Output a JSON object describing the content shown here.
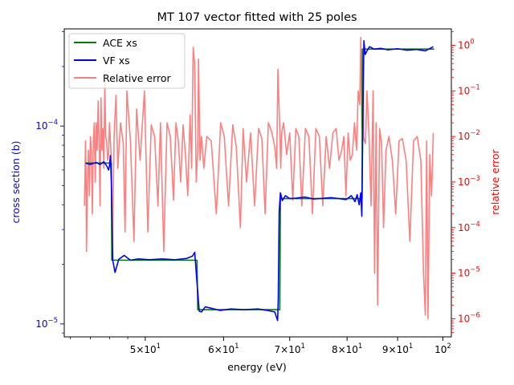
{
  "chart_data": {
    "type": "line",
    "title": "MT 107 vector fitted with 25 poles",
    "xlabel": "energy (eV)",
    "ylabel_left": "cross section (b)",
    "ylabel_right": "relative error",
    "x_scale": "log",
    "y_left_scale": "log",
    "y_right_scale": "log",
    "xlim": [
      41.4,
      102
    ],
    "ylim_left": [
      8.6e-06,
      0.00031
    ],
    "ylim_right": [
      4e-07,
      2.3
    ],
    "grid": false,
    "legend_position": "top-left",
    "x_ticks": [
      {
        "value": 50,
        "base": "5×10",
        "exp": "1"
      },
      {
        "value": 60,
        "base": "6×10",
        "exp": "1"
      },
      {
        "value": 70,
        "base": "7×10",
        "exp": "1"
      },
      {
        "value": 80,
        "base": "8×10",
        "exp": "1"
      },
      {
        "value": 90,
        "base": "9×10",
        "exp": "1"
      },
      {
        "value": 100,
        "base": "10",
        "exp": "2"
      }
    ],
    "y_left_ticks": [
      {
        "value": 1e-05,
        "base": "10",
        "exp": "−5"
      },
      {
        "value": 0.0001,
        "base": "10",
        "exp": "−4"
      }
    ],
    "y_right_ticks": [
      {
        "value": 1e-06,
        "base": "10",
        "exp": "−6"
      },
      {
        "value": 1e-05,
        "base": "10",
        "exp": "−5"
      },
      {
        "value": 0.0001,
        "base": "10",
        "exp": "−4"
      },
      {
        "value": 0.001,
        "base": "10",
        "exp": "−3"
      },
      {
        "value": 0.01,
        "base": "10",
        "exp": "−2"
      },
      {
        "value": 0.1,
        "base": "10",
        "exp": "−1"
      },
      {
        "value": 1,
        "base": "10",
        "exp": "0"
      }
    ],
    "colors": {
      "ace": "#008000",
      "vf": "#0000ff",
      "error": "#ff7f7f",
      "left_axis": "#0000ff",
      "right_axis": "#ff0000"
    },
    "series": [
      {
        "name": "ACE xs",
        "axis": "left",
        "x": [
          43.5,
          45.2,
          46.2,
          46.25,
          50,
          55.5,
          56.4,
          56.5,
          62,
          68.2,
          68.4,
          68.5,
          75,
          82.5,
          82.85,
          82.9,
          98
        ],
        "y": [
          6.5e-05,
          6.5e-05,
          6.5e-05,
          2.1e-05,
          2.1e-05,
          2.1e-05,
          2.1e-05,
          1.18e-05,
          1.18e-05,
          1.18e-05,
          1.18e-05,
          4.3e-05,
          4.3e-05,
          4.3e-05,
          4.3e-05,
          0.000245,
          0.000245
        ]
      },
      {
        "name": "VF xs",
        "axis": "left",
        "x": [
          43.5,
          44.0,
          44.6,
          45.0,
          45.4,
          45.7,
          45.9,
          46.0,
          46.1,
          46.2,
          46.35,
          46.6,
          47.0,
          47.6,
          48.3,
          49.2,
          50.5,
          52.0,
          53.5,
          55.0,
          55.8,
          56.1,
          56.4,
          56.7,
          57.0,
          57.5,
          58.3,
          59.5,
          61.0,
          63.0,
          65.0,
          66.5,
          67.6,
          68.05,
          68.15,
          68.3,
          68.5,
          68.8,
          69.3,
          70.0,
          71.0,
          72.5,
          74.0,
          75.5,
          77.0,
          78.5,
          79.8,
          80.8,
          81.5,
          81.9,
          82.3,
          82.6,
          82.8,
          83.0,
          83.2,
          83.45,
          83.8,
          84.3,
          85.2,
          86.5,
          88.0,
          90.0,
          92.0,
          94.0,
          96.0,
          97.8
        ],
        "y": [
          6.5e-05,
          6.4e-05,
          6.55e-05,
          6.4e-05,
          6.6e-05,
          6.3e-05,
          6e-05,
          6.3e-05,
          7.1e-05,
          5.2e-05,
          2.1e-05,
          1.82e-05,
          2.12e-05,
          2.22e-05,
          2.1e-05,
          2.13e-05,
          2.11e-05,
          2.13e-05,
          2.11e-05,
          2.14e-05,
          2.2e-05,
          2.3e-05,
          1.62e-05,
          1.16e-05,
          1.15e-05,
          1.22e-05,
          1.2e-05,
          1.17e-05,
          1.19e-05,
          1.18e-05,
          1.19e-05,
          1.17e-05,
          1.15e-05,
          1.04e-05,
          1.3e-05,
          3.7e-05,
          4.6e-05,
          4.2e-05,
          4.45e-05,
          4.3e-05,
          4.32e-05,
          4.38e-05,
          4.28e-05,
          4.31e-05,
          4.35e-05,
          4.3e-05,
          4.25e-05,
          4.45e-05,
          4.15e-05,
          4.5e-05,
          4e-05,
          4.6e-05,
          3.5e-05,
          0.000105,
          0.00027,
          0.00023,
          0.00024,
          0.000252,
          0.000245,
          0.000247,
          0.000243,
          0.000246,
          0.000242,
          0.000244,
          0.00024,
          0.000252
        ]
      },
      {
        "name": "Relative error",
        "axis": "right",
        "x": [
          43.4,
          43.5,
          43.55,
          43.6,
          43.7,
          43.8,
          43.9,
          44.0,
          44.1,
          44.2,
          44.3,
          44.4,
          44.5,
          44.6,
          44.7,
          44.8,
          44.9,
          45.0,
          45.1,
          45.2,
          45.3,
          45.4,
          45.5,
          45.6,
          45.7,
          45.8,
          45.9,
          46.0,
          46.1,
          46.2,
          46.3,
          46.5,
          46.7,
          46.9,
          47.2,
          47.5,
          47.7,
          47.9,
          48.3,
          48.7,
          49.0,
          49.4,
          49.9,
          50.3,
          50.7,
          51.1,
          51.5,
          51.8,
          52.2,
          52.6,
          53.0,
          53.4,
          53.7,
          54.0,
          54.3,
          54.6,
          54.9,
          55.2,
          55.5,
          55.7,
          55.9,
          56.1,
          56.3,
          56.5,
          56.6,
          56.8,
          57.0,
          57.3,
          57.7,
          58.3,
          59.0,
          59.6,
          60.1,
          60.7,
          61.3,
          61.8,
          62.4,
          62.8,
          63.3,
          63.9,
          64.5,
          65.1,
          65.6,
          66.1,
          66.6,
          67.1,
          67.6,
          67.9,
          68.1,
          68.25,
          68.4,
          68.55,
          68.7,
          69.0,
          69.5,
          70.0,
          70.5,
          71.0,
          71.5,
          72.0,
          72.6,
          73.2,
          73.8,
          74.4,
          75.0,
          75.6,
          76.2,
          76.8,
          77.4,
          78.0,
          78.5,
          79.0,
          79.4,
          79.8,
          80.2,
          80.6,
          81.0,
          81.4,
          81.8,
          82.1,
          82.4,
          82.6,
          82.8,
          83.0,
          83.15,
          83.3,
          83.5,
          83.8,
          84.2,
          84.6,
          85.0,
          85.3,
          85.6,
          85.9,
          86.3,
          86.7,
          87.1,
          87.6,
          88.2,
          88.9,
          89.6,
          90.3,
          91.0,
          91.8,
          92.6,
          93.4,
          94.2,
          95.0,
          95.6,
          96.0,
          96.3,
          96.6,
          97.0,
          97.4,
          97.8
        ],
        "y": [
          0.0003,
          0.008,
          0.002,
          3e-05,
          0.001,
          0.005,
          0.0005,
          0.01,
          0.005,
          0.0002,
          0.008,
          0.02,
          0.001,
          0.02,
          0.005,
          0.06,
          0.008,
          0.0003,
          0.07,
          0.005,
          0.015,
          0.002,
          0.15,
          0.01,
          0.008,
          0.003,
          0.004,
          0.02,
          0.008,
          0.003,
          2e-05,
          0.01,
          0.08,
          0.002,
          0.02,
          0.007,
          8e-05,
          0.1,
          0.008,
          5e-05,
          0.04,
          0.003,
          0.1,
          8e-05,
          0.018,
          0.01,
          0.0003,
          0.02,
          3e-05,
          0.02,
          0.01,
          0.0004,
          0.02,
          0.008,
          0.001,
          0.018,
          0.004,
          0.0005,
          0.03,
          0.002,
          0.9,
          0.4,
          0.001,
          0.005,
          0.5,
          0.003,
          0.01,
          0.002,
          0.01,
          0.008,
          0.0002,
          0.02,
          0.01,
          0.0003,
          0.018,
          0.006,
          0.0001,
          0.015,
          0.001,
          0.012,
          0.0003,
          0.015,
          0.009,
          0.0002,
          0.02,
          0.013,
          0.006,
          0.002,
          0.3,
          0.06,
          0.015,
          0.002,
          0.012,
          0.02,
          0.004,
          0.012,
          0.0004,
          0.015,
          0.01,
          0.0003,
          0.015,
          0.01,
          0.0002,
          0.015,
          0.01,
          0.0003,
          0.01,
          0.002,
          0.012,
          0.015,
          0.003,
          0.005,
          0.01,
          0.0005,
          0.012,
          0.003,
          0.004,
          0.02,
          0.005,
          0.1,
          0.05,
          1.5,
          0.015,
          0.5,
          0.01,
          0.008,
          0.007,
          0.1,
          0.01,
          0.0003,
          0.1,
          1e-05,
          0.02,
          2e-06,
          0.015,
          0.007,
          0.0001,
          0.005,
          0.01,
          0.003,
          0.0002,
          0.008,
          0.009,
          0.003,
          5e-05,
          0.008,
          0.01,
          0.003,
          1e-05,
          1.2e-06,
          0.008,
          1e-06,
          0.004,
          0.0005,
          0.012
        ]
      }
    ]
  }
}
